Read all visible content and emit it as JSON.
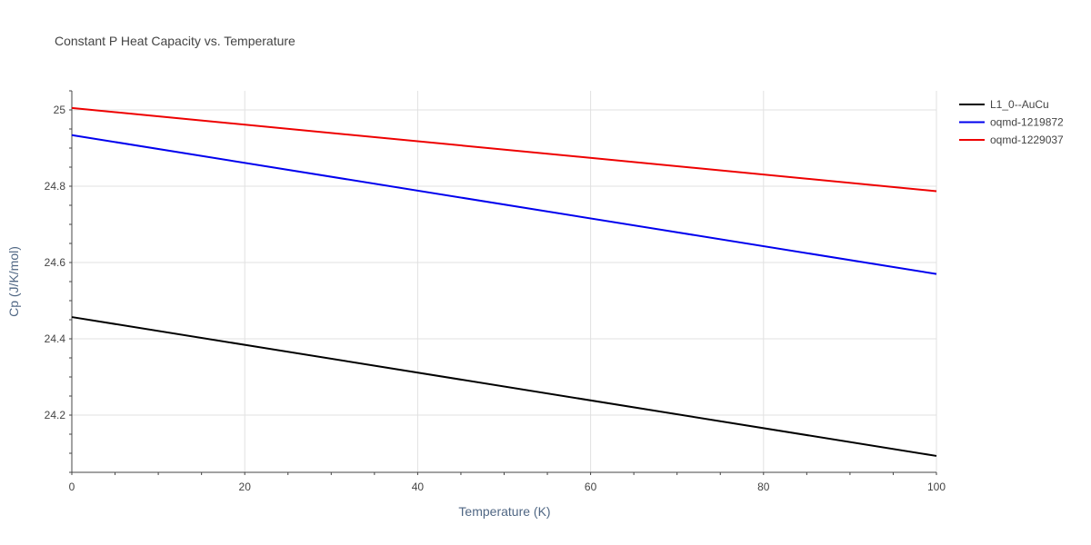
{
  "chart_data": {
    "type": "line",
    "title": "Constant P Heat Capacity vs. Temperature",
    "xlabel": "Temperature (K)",
    "ylabel": "Cp (J/K/mol)",
    "xlim": [
      0,
      100
    ],
    "ylim": [
      24.05,
      25.05
    ],
    "x_ticks": [
      0,
      20,
      40,
      60,
      80,
      100
    ],
    "y_ticks": [
      24.2,
      24.4,
      24.6,
      24.8,
      25
    ],
    "grid": true,
    "legend": "right",
    "series": [
      {
        "name": "L1_0--AuCu",
        "color": "#000000",
        "x": [
          0,
          100
        ],
        "y": [
          24.457,
          24.093
        ]
      },
      {
        "name": "oqmd-1219872",
        "color": "#0000ee",
        "x": [
          0,
          100
        ],
        "y": [
          24.934,
          24.57
        ]
      },
      {
        "name": "oqmd-1229037",
        "color": "#ee0000",
        "x": [
          0,
          100
        ],
        "y": [
          25.005,
          24.787
        ]
      }
    ]
  }
}
